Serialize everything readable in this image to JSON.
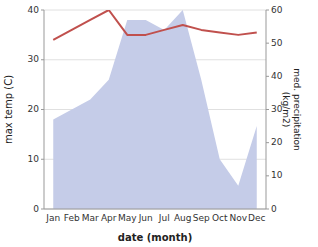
{
  "chart_data": {
    "type": "line",
    "categories": [
      "Jan",
      "Feb",
      "Mar",
      "Apr",
      "May",
      "Jun",
      "Jul",
      "Aug",
      "Sep",
      "Oct",
      "Nov",
      "Dec"
    ],
    "xlabel": "date (month)",
    "ylabel": "max temp (C)",
    "y2label": "med. precipitation\n(kg/m2)",
    "ylim": [
      0,
      40
    ],
    "yticks": [
      0,
      10,
      20,
      30,
      40
    ],
    "y2lim": [
      0,
      60
    ],
    "y2ticks": [
      0,
      10,
      20,
      30,
      40,
      50,
      60
    ],
    "grid": true,
    "series": [
      {
        "type": "area",
        "axis": "y2",
        "color": "#c5cce8",
        "values": [
          27,
          30,
          33,
          39,
          57,
          57,
          54,
          60,
          39,
          15,
          7,
          25
        ]
      },
      {
        "type": "line",
        "color": "#c0504d",
        "values": [
          34.0,
          36.0,
          38.0,
          40.0,
          35.0,
          35.0,
          36.0,
          37.0,
          36.0,
          35.5,
          35.0,
          35.5
        ]
      }
    ]
  }
}
